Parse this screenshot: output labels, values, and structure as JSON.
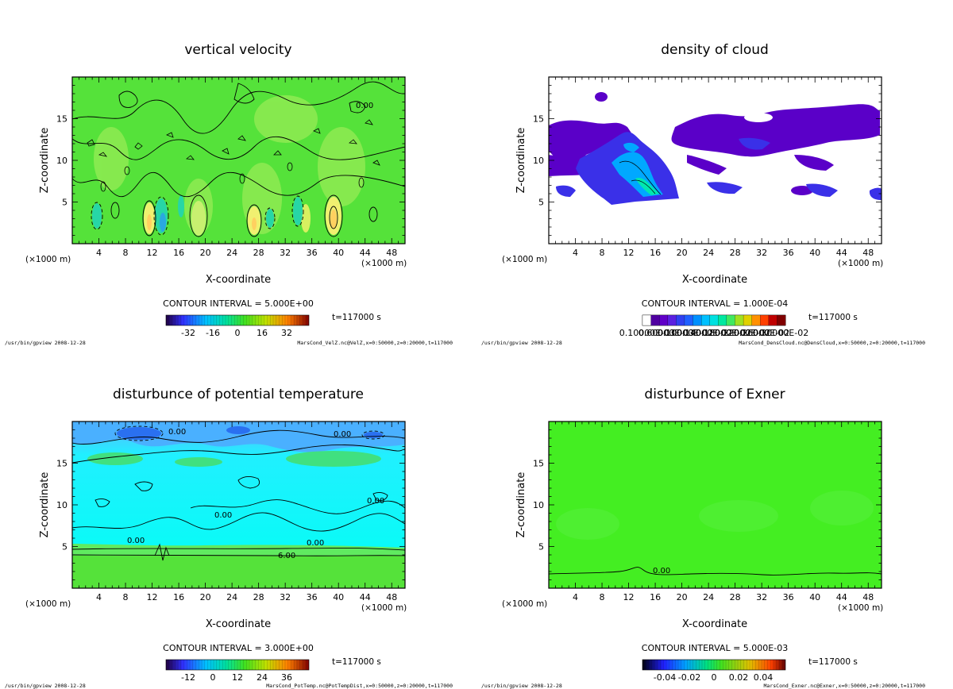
{
  "colors": {
    "velocity_bg": "#55e23a",
    "velocity_blob": "#aef060",
    "velocity_neg": "#27d6a6",
    "cloud_dark": "#5a00c8",
    "cloud_mid": "#2a40f0",
    "cloud_light": "#00a8ff",
    "temp_bg": "#00fff4",
    "temp_top": "#4ab0ff",
    "temp_low": "#55e23a",
    "exner_bg": "#44ee22"
  },
  "chart_data": [
    {
      "type": "heatmap",
      "key": "velz",
      "title": "vertical velocity",
      "xlabel": "X-coordinate",
      "ylabel": "Z-coordinate",
      "x_unit": "(×1000 m)",
      "xlim": [
        0,
        50
      ],
      "ylim": [
        0,
        20
      ],
      "x_ticks": [
        4,
        8,
        12,
        16,
        20,
        24,
        28,
        32,
        36,
        40,
        44,
        48
      ],
      "y_ticks": [
        5,
        10,
        15
      ],
      "contour_interval": "CONTOUR INTERVAL = 5.000E+00",
      "time": "t=117000 s",
      "colorbar_ticks": [
        "-32",
        "-16",
        "0",
        "16",
        "32"
      ],
      "contour_labels": [
        "0.00"
      ],
      "footer_left": "/usr/bin/gpview  2008-12-28",
      "footer_right": "MarsCond_VelZ.nc@VelZ,x=0:50000,z=0:20000,t=117000"
    },
    {
      "type": "heatmap",
      "key": "cloud",
      "title": "density of cloud",
      "xlabel": "X-coordinate",
      "ylabel": "Z-coordinate",
      "x_unit": "(×1000 m)",
      "xlim": [
        0,
        50
      ],
      "ylim": [
        0,
        20
      ],
      "x_ticks": [
        4,
        8,
        12,
        16,
        20,
        24,
        28,
        32,
        36,
        40,
        44,
        48
      ],
      "y_ticks": [
        5,
        10,
        15
      ],
      "contour_interval": "CONTOUR INTERVAL = 1.000E-04",
      "time": "t=117000 s",
      "colorbar_ticks": [
        "0.10000E-03",
        "0.60000E-03",
        "0.10000E-02",
        "0.14000E-02",
        "0.18000E-02",
        "0.22000E-02",
        "0.26000E-02",
        "0.30000E-02"
      ],
      "contour_labels": [],
      "footer_left": "/usr/bin/gpview  2008-12-28",
      "footer_right": "MarsCond_DensCloud.nc@DensCloud,x=0:50000,z=0:20000,t=117000"
    },
    {
      "type": "heatmap",
      "key": "ptemp",
      "title": "disturbunce of potential temperature",
      "xlabel": "X-coordinate",
      "ylabel": "Z-coordinate",
      "x_unit": "(×1000 m)",
      "xlim": [
        0,
        50
      ],
      "ylim": [
        0,
        20
      ],
      "x_ticks": [
        4,
        8,
        12,
        16,
        20,
        24,
        28,
        32,
        36,
        40,
        44,
        48
      ],
      "y_ticks": [
        5,
        10,
        15
      ],
      "contour_interval": "CONTOUR INTERVAL = 3.000E+00",
      "time": "t=117000 s",
      "colorbar_ticks": [
        "-12",
        "0",
        "12",
        "24",
        "36"
      ],
      "contour_labels": [
        "0.00",
        "6.00"
      ],
      "footer_left": "/usr/bin/gpview  2008-12-28",
      "footer_right": "MarsCond_PotTemp.nc@PotTempDist,x=0:50000,z=0:20000,t=117000"
    },
    {
      "type": "heatmap",
      "key": "exner",
      "title": "disturbunce of Exner",
      "xlabel": "X-coordinate",
      "ylabel": "Z-coordinate",
      "x_unit": "(×1000 m)",
      "xlim": [
        0,
        50
      ],
      "ylim": [
        0,
        20
      ],
      "x_ticks": [
        4,
        8,
        12,
        16,
        20,
        24,
        28,
        32,
        36,
        40,
        44,
        48
      ],
      "y_ticks": [
        5,
        10,
        15
      ],
      "contour_interval": "CONTOUR INTERVAL = 5.000E-03",
      "time": "t=117000 s",
      "colorbar_ticks": [
        "-0.04",
        "-0.02",
        "0",
        "0.02",
        "0.04"
      ],
      "contour_labels": [
        "0.00"
      ],
      "footer_left": "/usr/bin/gpview  2008-12-28",
      "footer_right": "MarsCond_Exner.nc@Exner,x=0:50000,z=0:20000,t=117000"
    }
  ]
}
